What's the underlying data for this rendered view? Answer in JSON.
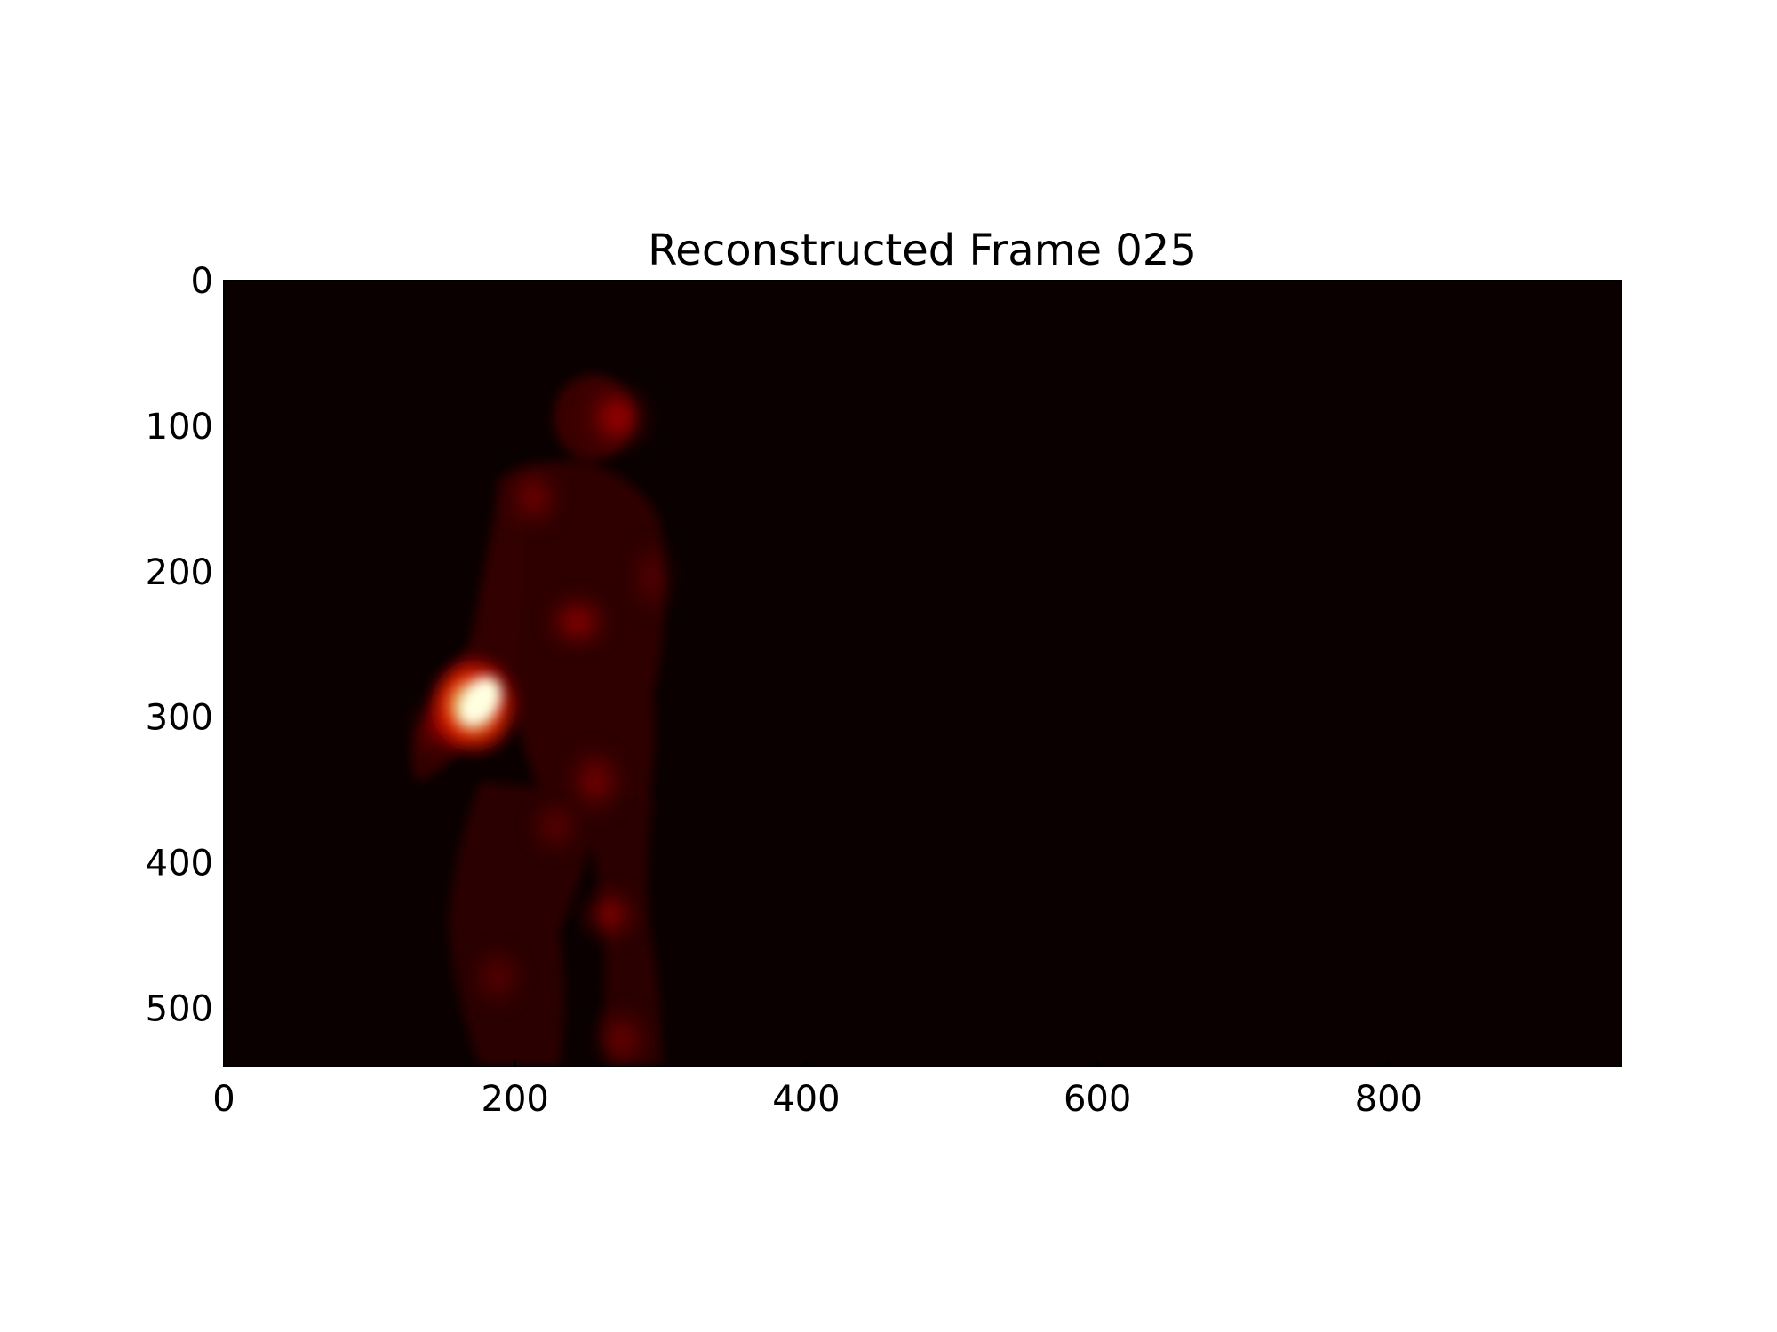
{
  "chart_data": {
    "type": "heatmap",
    "title": "Reconstructed Frame 025",
    "xlabel": "",
    "ylabel": "",
    "xlim": [
      0,
      960
    ],
    "ylim": [
      540,
      0
    ],
    "x_ticks": [
      0,
      200,
      400,
      600,
      800
    ],
    "y_ticks": [
      0,
      100,
      200,
      300,
      400,
      500
    ],
    "colormap": "hot",
    "background_color": "#0a0000",
    "colors": {
      "dark": "#0a0000",
      "deep_red": "#3a0000",
      "red": "#b00000",
      "bright_red": "#ff1a00",
      "hot_yellow": "#ffff80",
      "white": "#ffffff"
    },
    "content": "human figure silhouette rendered in hot colormap, brightest region near x=190, y=295"
  }
}
